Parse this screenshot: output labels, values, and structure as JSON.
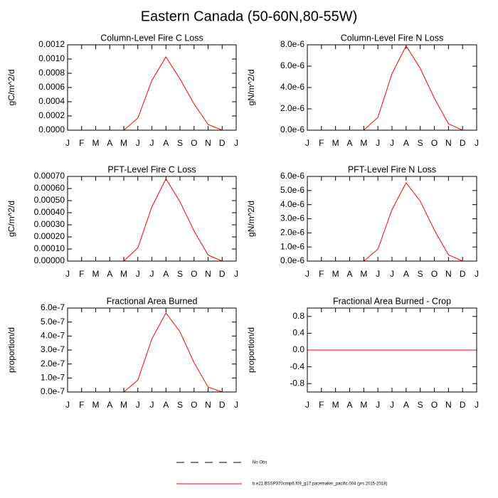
{
  "title": "Eastern Canada (50-60N,80-55W)",
  "legend": [
    {
      "name": "No Obs",
      "color": "#000000",
      "dashed": true
    },
    {
      "name": "b.e21.BSSP370cmip6.f09_g17.pacemaker_pacific.004 (yrs 2015-2018)",
      "color": "#ff0000",
      "dashed": false
    }
  ],
  "chart_data": [
    {
      "type": "line",
      "title": "Column-Level Fire C Loss",
      "y_label": "gC/m^2/d",
      "categories": [
        "J",
        "F",
        "M",
        "A",
        "M",
        "J",
        "J",
        "A",
        "S",
        "O",
        "N",
        "D",
        "J"
      ],
      "series": [
        {
          "color": "#ff0000",
          "values": [
            0,
            0,
            0,
            0,
            0,
            0.00017,
            0.0007,
            0.00103,
            0.00072,
            0.00037,
            8e-05,
            0,
            null
          ]
        }
      ],
      "ylim": [
        0,
        0.0012
      ],
      "yticks": [
        {
          "value": 0,
          "label": "0.0000"
        },
        {
          "value": 0.0002,
          "label": "0.0002"
        },
        {
          "value": 0.0004,
          "label": "0.0004"
        },
        {
          "value": 0.0006,
          "label": "0.0006"
        },
        {
          "value": 0.0008,
          "label": "0.0008"
        },
        {
          "value": 0.001,
          "label": "0.0010"
        },
        {
          "value": 0.0012,
          "label": "0.0012"
        }
      ]
    },
    {
      "type": "line",
      "title": "Column-Level Fire N Loss",
      "y_label": "gN/m^2/d",
      "categories": [
        "J",
        "F",
        "M",
        "A",
        "M",
        "J",
        "J",
        "A",
        "S",
        "O",
        "N",
        "D",
        "J"
      ],
      "series": [
        {
          "color": "#ff0000",
          "values": [
            0,
            0,
            0,
            0,
            0,
            1.2e-06,
            5.3e-06,
            7.9e-06,
            5.8e-06,
            3e-06,
            6e-07,
            0,
            null
          ]
        }
      ],
      "ylim": [
        0,
        8e-06
      ],
      "yticks": [
        {
          "value": 0,
          "label": "0.0e-6"
        },
        {
          "value": 2e-06,
          "label": "2.0e-6"
        },
        {
          "value": 4e-06,
          "label": "4.0e-6"
        },
        {
          "value": 6e-06,
          "label": "6.0e-6"
        },
        {
          "value": 8e-06,
          "label": "8.0e-6"
        }
      ]
    },
    {
      "type": "line",
      "title": "PFT-Level Fire C Loss",
      "y_label": "gC/m^2/d",
      "categories": [
        "J",
        "F",
        "M",
        "A",
        "M",
        "J",
        "J",
        "A",
        "S",
        "O",
        "N",
        "D",
        "J"
      ],
      "series": [
        {
          "color": "#ff0000",
          "values": [
            0,
            0,
            0,
            0,
            0,
            0.00011,
            0.00045,
            0.00068,
            0.00049,
            0.00025,
            5e-05,
            0,
            null
          ]
        }
      ],
      "ylim": [
        0,
        0.0007
      ],
      "yticks": [
        {
          "value": 0,
          "label": "0.00000"
        },
        {
          "value": 0.0001,
          "label": "0.00010"
        },
        {
          "value": 0.0002,
          "label": "0.00020"
        },
        {
          "value": 0.0003,
          "label": "0.00030"
        },
        {
          "value": 0.0004,
          "label": "0.00040"
        },
        {
          "value": 0.0005,
          "label": "0.00050"
        },
        {
          "value": 0.0006,
          "label": "0.00060"
        },
        {
          "value": 0.0007,
          "label": "0.00070"
        }
      ]
    },
    {
      "type": "line",
      "title": "PFT-Level Fire N Loss",
      "y_label": "gN/m^2/d",
      "categories": [
        "J",
        "F",
        "M",
        "A",
        "M",
        "J",
        "J",
        "A",
        "S",
        "O",
        "N",
        "D",
        "J"
      ],
      "series": [
        {
          "color": "#ff0000",
          "values": [
            0,
            0,
            0,
            0,
            0,
            8.5e-07,
            3.65e-06,
            5.55e-06,
            4.25e-06,
            2.2e-06,
            4.5e-07,
            0,
            null
          ]
        }
      ],
      "ylim": [
        0,
        6e-06
      ],
      "yticks": [
        {
          "value": 0,
          "label": "0.0e-6"
        },
        {
          "value": 1e-06,
          "label": "1.0e-6"
        },
        {
          "value": 2e-06,
          "label": "2.0e-6"
        },
        {
          "value": 3e-06,
          "label": "3.0e-6"
        },
        {
          "value": 4e-06,
          "label": "4.0e-6"
        },
        {
          "value": 5e-06,
          "label": "5.0e-6"
        },
        {
          "value": 6e-06,
          "label": "6.0e-6"
        }
      ]
    },
    {
      "type": "line",
      "title": "Fractional Area Burned",
      "y_label": "proportion/d",
      "categories": [
        "J",
        "F",
        "M",
        "A",
        "M",
        "J",
        "J",
        "A",
        "S",
        "O",
        "N",
        "D",
        "J"
      ],
      "series": [
        {
          "color": "#ff0000",
          "values": [
            0,
            0,
            0,
            0,
            0,
            8.5e-08,
            3.8e-07,
            5.65e-07,
            4.3e-07,
            2.1e-07,
            3.5e-08,
            0,
            null
          ]
        }
      ],
      "ylim": [
        0,
        6e-07
      ],
      "yticks": [
        {
          "value": 0,
          "label": "0.0e-7"
        },
        {
          "value": 1e-07,
          "label": "1.0e-7"
        },
        {
          "value": 2e-07,
          "label": "2.0e-7"
        },
        {
          "value": 3e-07,
          "label": "3.0e-7"
        },
        {
          "value": 4e-07,
          "label": "4.0e-7"
        },
        {
          "value": 5e-07,
          "label": "5.0e-7"
        },
        {
          "value": 6e-07,
          "label": "6.0e-7"
        }
      ]
    },
    {
      "type": "line",
      "title": "Fractional Area Burned - Crop",
      "y_label": "proportion/d",
      "categories": [
        "J",
        "F",
        "M",
        "A",
        "M",
        "J",
        "J",
        "A",
        "S",
        "O",
        "N",
        "D",
        "J"
      ],
      "series": [
        {
          "color": "#ff0000",
          "values": [
            0,
            0,
            0,
            0,
            0,
            0,
            0,
            0,
            0,
            0,
            0,
            0,
            0
          ]
        }
      ],
      "ylim": [
        -1,
        1
      ],
      "yticks": [
        -0.8,
        -0.4,
        {
          "value": 0,
          "label": "0.0"
        },
        0.4,
        0.8
      ]
    }
  ]
}
